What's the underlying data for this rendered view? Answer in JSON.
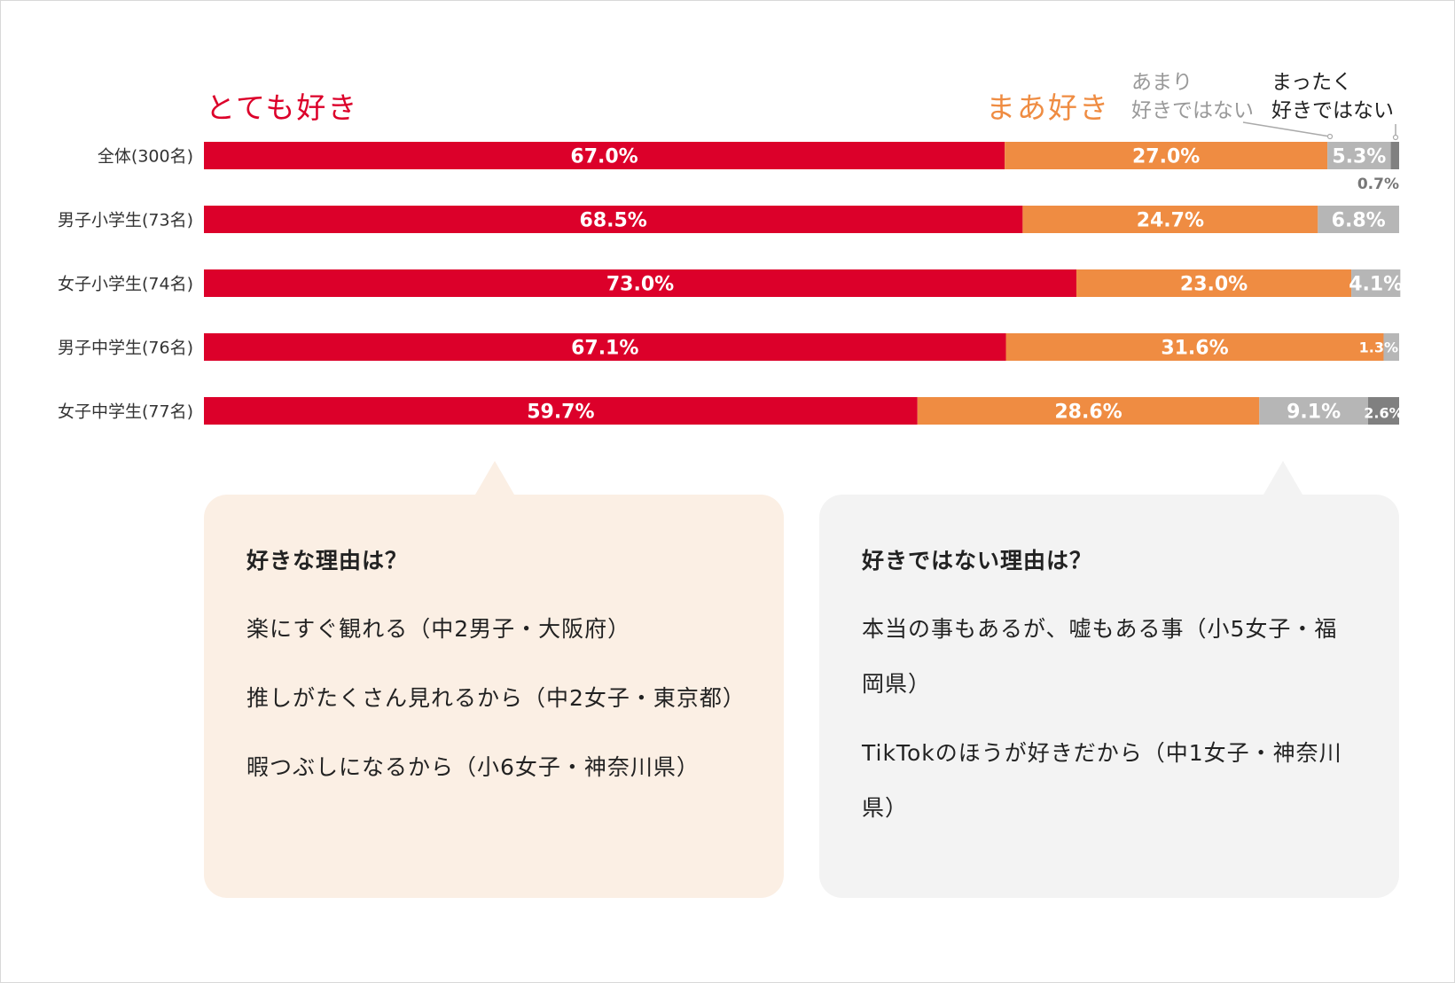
{
  "chart_data": {
    "type": "bar",
    "orientation": "horizontal-stacked",
    "categories": [
      "全体(300名)",
      "男子小学生(73名)",
      "女子小学生(74名)",
      "男子中学生(76名)",
      "女子中学生(77名)"
    ],
    "series": [
      {
        "name": "とても好き",
        "color": "#dc002a",
        "values": [
          67.0,
          68.5,
          73.0,
          67.1,
          59.7
        ]
      },
      {
        "name": "まあ好き",
        "color": "#ef8c42",
        "values": [
          27.0,
          24.7,
          23.0,
          31.6,
          28.6
        ]
      },
      {
        "name": "あまり好きではない",
        "color": "#b6b6b6",
        "values": [
          5.3,
          6.8,
          4.1,
          1.3,
          9.1
        ]
      },
      {
        "name": "まったく好きではない",
        "color": "#808080",
        "values": [
          0.7,
          0.0,
          0.0,
          0.0,
          2.6
        ]
      }
    ],
    "labels": [
      [
        "67.0%",
        "27.0%",
        "5.3%",
        "0.7%"
      ],
      [
        "68.5%",
        "24.7%",
        "6.8%",
        ""
      ],
      [
        "73.0%",
        "23.0%",
        "4.1%",
        ""
      ],
      [
        "67.1%",
        "31.6%",
        "1.3%",
        ""
      ],
      [
        "59.7%",
        "28.6%",
        "9.1%",
        "2.6%"
      ]
    ],
    "legend_lines": [
      [
        "とても好き"
      ],
      [
        "まあ好き"
      ],
      [
        "あまり",
        "好きではない"
      ],
      [
        "まったく",
        "好きではない"
      ]
    ],
    "xlim": [
      0,
      100
    ]
  },
  "like_box": {
    "question": "好きな理由は？",
    "answers": [
      "楽にすぐ観れる（中2男子・大阪府）",
      "推しがたくさん見れるから（中2女子・東京都）",
      "暇つぶしになるから（小6女子・神奈川県）"
    ]
  },
  "dislike_box": {
    "question": "好きではない理由は？",
    "answers": [
      "本当の事もあるが、嘘もある事（小5女子・福岡県）",
      "TikTokのほうが好きだから（中1女子・神奈川県）"
    ]
  }
}
